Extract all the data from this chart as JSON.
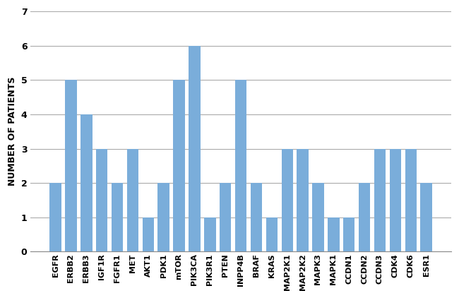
{
  "categories": [
    "EGFR",
    "ERBB2",
    "ERBB3",
    "IGF1R",
    "FGFR1",
    "MET",
    "AKT1",
    "PDK1",
    "mTOR",
    "PIK3CA",
    "PIK3R1",
    "PTEN",
    "INPP4B",
    "BRAF",
    "KRAS",
    "MAP2K1",
    "MAP2K2",
    "MAPK3",
    "MAPK1",
    "CCDN1",
    "CCDN2",
    "CCDN3",
    "CDK4",
    "CDK6",
    "ESR1"
  ],
  "values": [
    2,
    5,
    4,
    3,
    2,
    3,
    1,
    2,
    5,
    6,
    1,
    2,
    5,
    2,
    1,
    3,
    3,
    2,
    1,
    1,
    2,
    3,
    3,
    3,
    2
  ],
  "bar_color": "#7aadda",
  "ylabel": "NUMBER OF PATIENTS",
  "ylim": [
    0,
    7
  ],
  "yticks": [
    0,
    1,
    2,
    3,
    4,
    5,
    6,
    7
  ],
  "grid_color": "#aaaaaa",
  "background_color": "#ffffff",
  "tick_label_fontsize": 8,
  "ylabel_fontsize": 9,
  "ytick_fontsize": 9
}
